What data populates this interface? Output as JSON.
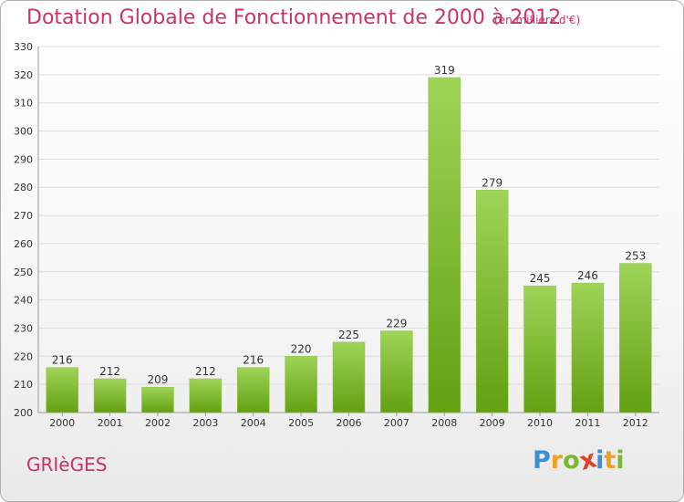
{
  "header": {
    "title": "Dotation Globale de Fonctionnement de 2000 à 2012",
    "unit": "(en milliers d'€)"
  },
  "footer": {
    "commune": "GRIèGES",
    "logo_letters": [
      "P",
      "r",
      "o",
      "x",
      "i",
      "t",
      "i"
    ],
    "logo_colors": [
      "#3a8fd6",
      "#f0a020",
      "#7ab830",
      "#e0402a",
      "#3a8fd6",
      "#f0a020",
      "#7ab830"
    ]
  },
  "colors": {
    "bar_top": "#9fd458",
    "bar_bottom": "#63a012",
    "title": "#c8336a"
  },
  "chart_data": {
    "type": "bar",
    "categories": [
      "2000",
      "2001",
      "2002",
      "2003",
      "2004",
      "2005",
      "2006",
      "2007",
      "2008",
      "2009",
      "2010",
      "2011",
      "2012"
    ],
    "values": [
      216,
      212,
      209,
      212,
      216,
      220,
      225,
      229,
      319,
      279,
      245,
      246,
      253
    ],
    "ylim": [
      200,
      330
    ],
    "yticks": [
      200,
      210,
      220,
      230,
      240,
      250,
      260,
      270,
      280,
      290,
      300,
      310,
      320,
      330
    ],
    "grid": true,
    "title": "Dotation Globale de Fonctionnement de 2000 à 2012",
    "ylabel": "(en milliers d'€)"
  }
}
